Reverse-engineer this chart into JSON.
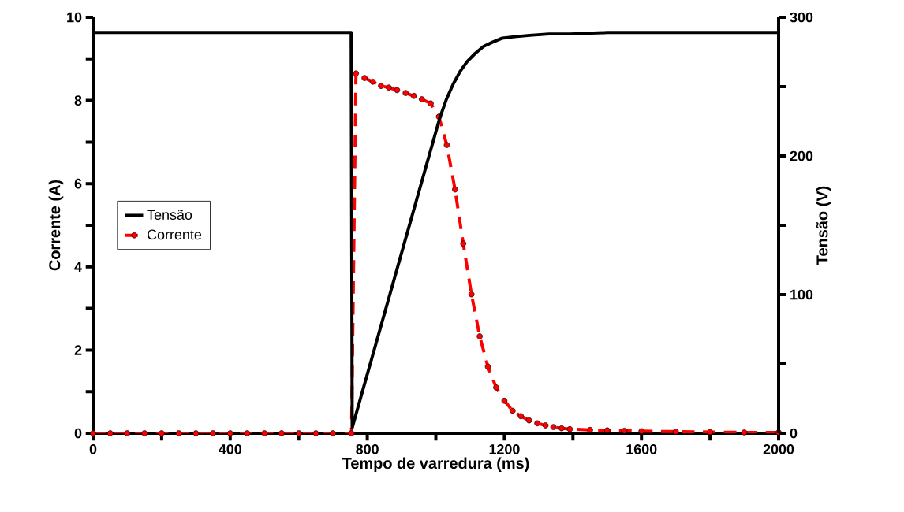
{
  "chart_data": {
    "type": "line",
    "xlabel": "Tempo de varredura (ms)",
    "ylabel": "Corrente (A)",
    "y2label": "Tensão (V)",
    "xlim": [
      0,
      2000
    ],
    "ylim": [
      0,
      10
    ],
    "y2lim": [
      0,
      300
    ],
    "xticks": [
      0,
      {
        "value": 200,
        "label": null
      },
      400,
      {
        "value": 600,
        "label": null
      },
      800,
      {
        "value": 1000,
        "label": null
      },
      1200,
      {
        "value": 1400,
        "label": null
      },
      1600,
      {
        "value": 1800,
        "label": null
      },
      2000
    ],
    "yticks": [
      0,
      {
        "value": 1,
        "label": null
      },
      2,
      {
        "value": 3,
        "label": null
      },
      4,
      {
        "value": 5,
        "label": null
      },
      6,
      {
        "value": 7,
        "label": null
      },
      8,
      {
        "value": 9,
        "label": null
      },
      10
    ],
    "y2ticks": [
      0,
      {
        "value": 50,
        "label": null
      },
      100,
      {
        "value": 150,
        "label": null
      },
      200,
      {
        "value": 250,
        "label": null
      },
      300
    ],
    "legend": "left",
    "grid": false,
    "series": [
      {
        "name": "Tensão",
        "color": "#000000",
        "axis": "y2",
        "line_style": "solid",
        "marker": "none",
        "x": [
          0,
          753,
          756,
          900,
          1011,
          1031,
          1051,
          1071,
          1091,
          1115,
          1139,
          1165,
          1194,
          1230,
          1274,
          1330,
          1392,
          1500,
          2000
        ],
        "values": [
          289,
          289,
          4,
          130,
          227,
          241,
          252,
          261,
          268,
          274,
          279,
          282,
          285,
          286,
          287,
          288,
          288,
          289,
          289
        ]
      },
      {
        "name": "Corrente",
        "color": "#ff0000",
        "axis": "y",
        "line_style": "dashed",
        "marker": "circle",
        "x": [
          0,
          50,
          100,
          150,
          200,
          250,
          300,
          350,
          400,
          450,
          500,
          550,
          600,
          650,
          700,
          754,
          767,
          792,
          816,
          840,
          863,
          887,
          912,
          936,
          959,
          985,
          1009,
          1032,
          1056,
          1080,
          1104,
          1128,
          1152,
          1176,
          1200,
          1224,
          1248,
          1272,
          1296,
          1320,
          1343,
          1367,
          1391,
          1450,
          1500,
          1550,
          1600,
          1700,
          1800,
          1900,
          2000
        ],
        "values": [
          0,
          0,
          0,
          0,
          0,
          0,
          0,
          0,
          0,
          0,
          0,
          0,
          0,
          0,
          0,
          0,
          8.65,
          8.54,
          8.45,
          8.35,
          8.31,
          8.25,
          8.18,
          8.11,
          8.03,
          7.93,
          7.61,
          6.93,
          5.86,
          4.56,
          3.34,
          2.33,
          1.6,
          1.1,
          0.78,
          0.54,
          0.41,
          0.31,
          0.24,
          0.19,
          0.15,
          0.12,
          0.1,
          0.08,
          0.07,
          0.06,
          0.05,
          0.04,
          0.03,
          0.02,
          0.02
        ]
      }
    ]
  }
}
